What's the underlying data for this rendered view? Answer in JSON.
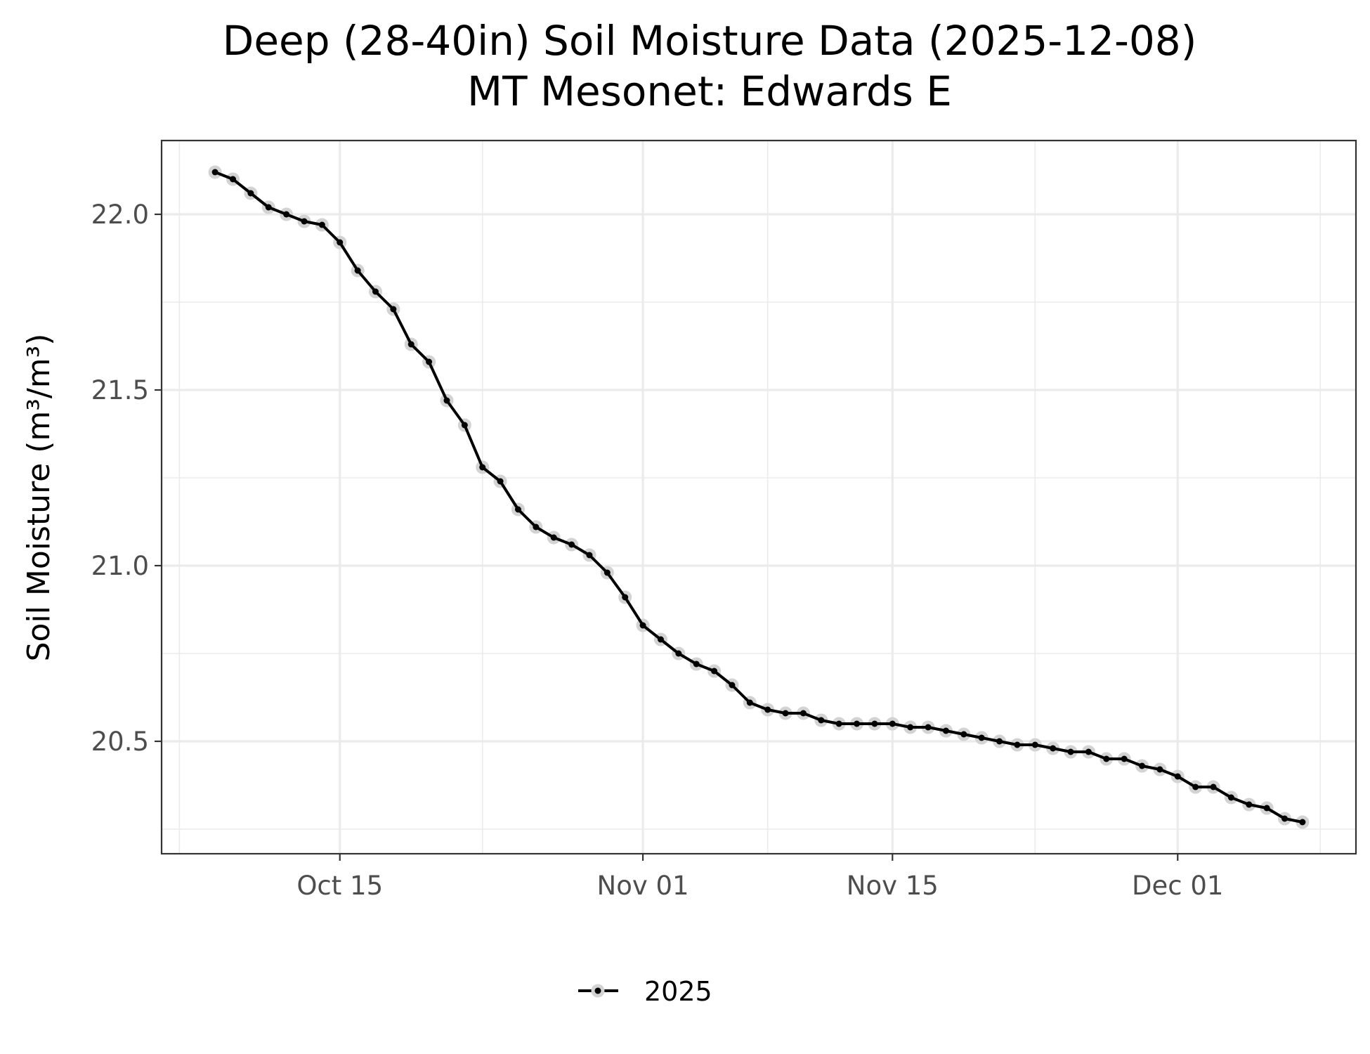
{
  "chart_data": {
    "type": "line",
    "title": "Deep (28-40in) Soil Moisture Data (2025-12-08)",
    "subtitle": "MT Mesonet: Edwards E",
    "xlabel": "",
    "ylabel": "Soil Moisture (m³/m³)",
    "xlim": [
      "2025-10-05",
      "2025-12-11"
    ],
    "ylim": [
      20.18,
      22.21
    ],
    "x_ticks": [
      {
        "date": "2025-10-15",
        "label": "Oct 15"
      },
      {
        "date": "2025-11-01",
        "label": "Nov 01"
      },
      {
        "date": "2025-11-15",
        "label": "Nov 15"
      },
      {
        "date": "2025-12-01",
        "label": "Dec 01"
      }
    ],
    "y_ticks": [
      {
        "value": 20.5,
        "label": "20.5"
      },
      {
        "value": 21.0,
        "label": "21.0"
      },
      {
        "value": 21.5,
        "label": "21.5"
      },
      {
        "value": 22.0,
        "label": "22.0"
      }
    ],
    "x_minor_ticks": [
      "2025-10-06",
      "2025-10-23",
      "2025-11-08",
      "2025-11-23",
      "2025-12-09"
    ],
    "y_minor_ticks": [
      20.25,
      20.75,
      21.25,
      21.75
    ],
    "grid": true,
    "legend_position": "bottom",
    "series": [
      {
        "name": "2025",
        "color": "#000000",
        "point_halo_color": "#d3d3d3",
        "x": [
          "2025-10-08",
          "2025-10-09",
          "2025-10-10",
          "2025-10-11",
          "2025-10-12",
          "2025-10-13",
          "2025-10-14",
          "2025-10-15",
          "2025-10-16",
          "2025-10-17",
          "2025-10-18",
          "2025-10-19",
          "2025-10-20",
          "2025-10-21",
          "2025-10-22",
          "2025-10-23",
          "2025-10-24",
          "2025-10-25",
          "2025-10-26",
          "2025-10-27",
          "2025-10-28",
          "2025-10-29",
          "2025-10-30",
          "2025-10-31",
          "2025-11-01",
          "2025-11-02",
          "2025-11-03",
          "2025-11-04",
          "2025-11-05",
          "2025-11-06",
          "2025-11-07",
          "2025-11-08",
          "2025-11-09",
          "2025-11-10",
          "2025-11-11",
          "2025-11-12",
          "2025-11-13",
          "2025-11-14",
          "2025-11-15",
          "2025-11-16",
          "2025-11-17",
          "2025-11-18",
          "2025-11-19",
          "2025-11-20",
          "2025-11-21",
          "2025-11-22",
          "2025-11-23",
          "2025-11-24",
          "2025-11-25",
          "2025-11-26",
          "2025-11-27",
          "2025-11-28",
          "2025-11-29",
          "2025-11-30",
          "2025-12-01",
          "2025-12-02",
          "2025-12-03",
          "2025-12-04",
          "2025-12-05",
          "2025-12-06",
          "2025-12-07",
          "2025-12-08"
        ],
        "y": [
          22.12,
          22.1,
          22.06,
          22.02,
          22.0,
          21.98,
          21.97,
          21.92,
          21.84,
          21.78,
          21.73,
          21.63,
          21.58,
          21.47,
          21.4,
          21.28,
          21.24,
          21.16,
          21.11,
          21.08,
          21.06,
          21.03,
          20.98,
          20.91,
          20.83,
          20.79,
          20.75,
          20.72,
          20.7,
          20.66,
          20.61,
          20.59,
          20.58,
          20.58,
          20.56,
          20.55,
          20.55,
          20.55,
          20.55,
          20.54,
          20.54,
          20.53,
          20.52,
          20.51,
          20.5,
          20.49,
          20.49,
          20.48,
          20.47,
          20.47,
          20.45,
          20.45,
          20.43,
          20.42,
          20.4,
          20.37,
          20.37,
          20.34,
          20.32,
          20.31,
          20.28,
          20.27
        ]
      }
    ]
  }
}
